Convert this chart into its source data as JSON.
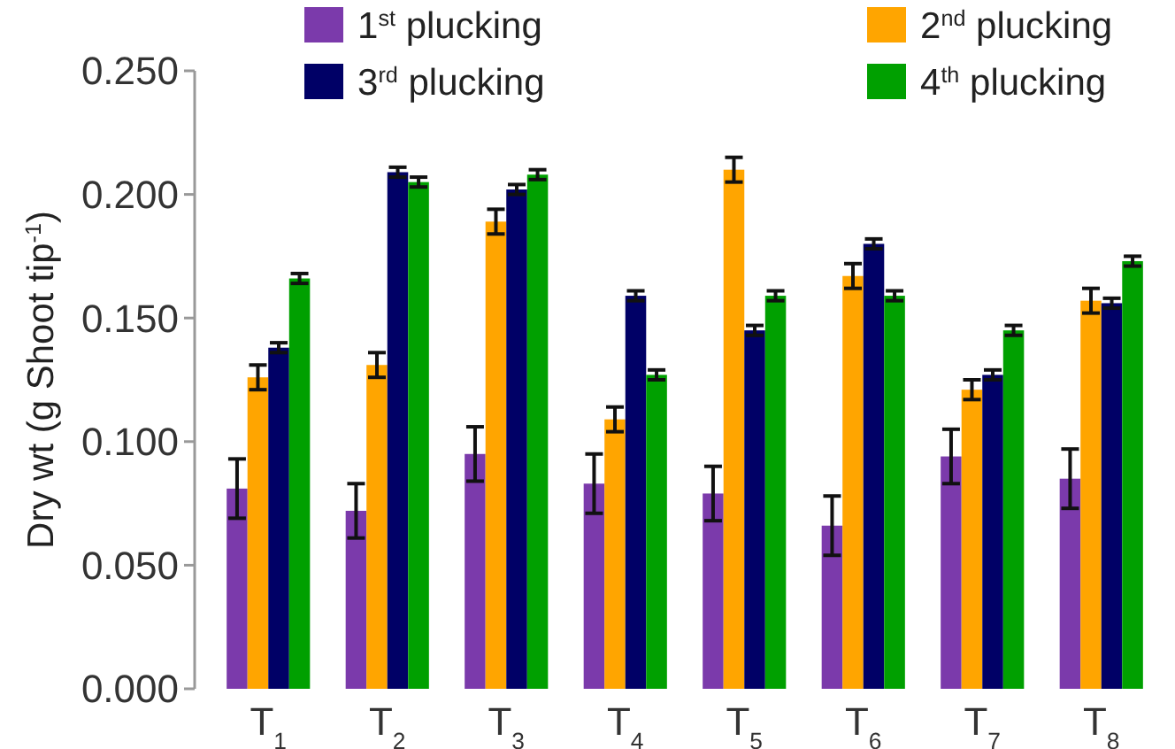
{
  "chart_data": {
    "type": "bar",
    "ylabel": "Dry wt (g Shoot tip$^{-1}$)",
    "categories": [
      "T$_{1}$",
      "T$_{2}$",
      "T$_{3}$",
      "T$_{4}$",
      "T$_{5}$",
      "T$_{6}$",
      "T$_{7}$",
      "T$_{8}$"
    ],
    "series": [
      {
        "name": "1$^{st}$ plucking",
        "color": "#7b3aab",
        "values": [
          0.081,
          0.072,
          0.095,
          0.083,
          0.079,
          0.066,
          0.094,
          0.085
        ],
        "errors": [
          0.012,
          0.011,
          0.011,
          0.012,
          0.011,
          0.012,
          0.011,
          0.012
        ]
      },
      {
        "name": "2$^{nd}$ plucking",
        "color": "#ffa500",
        "values": [
          0.126,
          0.131,
          0.189,
          0.109,
          0.21,
          0.167,
          0.121,
          0.157
        ],
        "errors": [
          0.005,
          0.005,
          0.005,
          0.005,
          0.005,
          0.005,
          0.004,
          0.005
        ]
      },
      {
        "name": "3$^{rd}$ plucking",
        "color": "#000066",
        "values": [
          0.138,
          0.209,
          0.202,
          0.159,
          0.145,
          0.18,
          0.127,
          0.156
        ],
        "errors": [
          0.002,
          0.002,
          0.002,
          0.002,
          0.002,
          0.002,
          0.002,
          0.002
        ]
      },
      {
        "name": "4$^{th}$ plucking",
        "color": "#00a000",
        "values": [
          0.166,
          0.205,
          0.208,
          0.127,
          0.159,
          0.159,
          0.145,
          0.173
        ],
        "errors": [
          0.002,
          0.002,
          0.002,
          0.002,
          0.002,
          0.002,
          0.002,
          0.002
        ]
      }
    ],
    "ylim": [
      0,
      0.25
    ],
    "yticks": [
      {
        "value": 0,
        "label": "0.000"
      },
      {
        "value": 0.05,
        "label": "0.050"
      },
      {
        "value": 0.1,
        "label": "0.100"
      },
      {
        "value": 0.15,
        "label": "0.150"
      },
      {
        "value": 0.2,
        "label": "0.200"
      },
      {
        "value": 0.25,
        "label": "0.250"
      }
    ],
    "grid": false,
    "legend": "top"
  }
}
